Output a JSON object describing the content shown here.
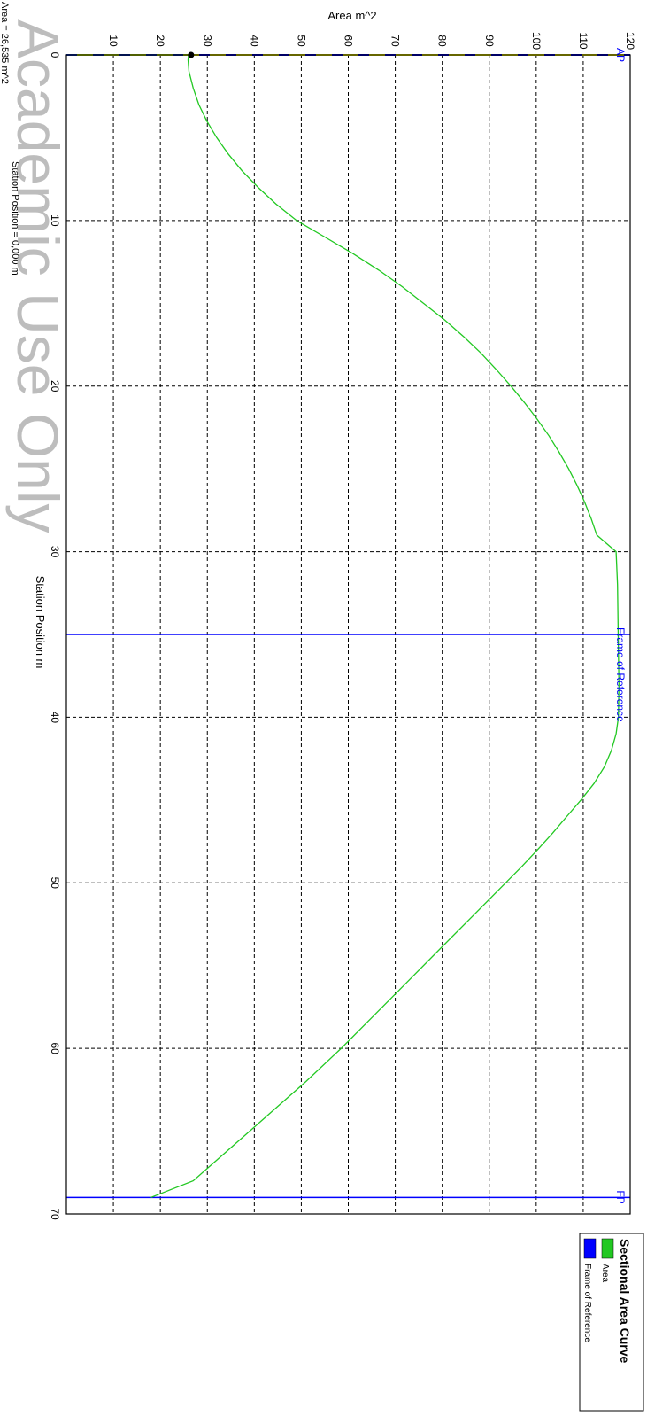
{
  "chart_data": {
    "type": "line",
    "title": "",
    "xlabel": "Station Position  m",
    "ylabel": "Area  m^2",
    "xlim": [
      0,
      70
    ],
    "ylim": [
      0,
      120
    ],
    "x_ticks": [
      "0",
      "10",
      "20",
      "30",
      "40",
      "50",
      "60",
      "70"
    ],
    "y_ticks": [
      "10",
      "20",
      "30",
      "40",
      "50",
      "60",
      "70",
      "80",
      "90",
      "100",
      "110",
      "120"
    ],
    "grid": true,
    "rotation": "chart rotated 90 degrees clockwise",
    "series": [
      {
        "name": "Area",
        "color": "#22c822",
        "x": [
          0,
          0,
          0.3,
          1,
          2,
          3,
          4,
          5,
          6,
          7,
          8,
          9,
          10,
          11,
          12,
          13,
          14,
          15,
          16,
          17,
          18,
          19,
          20,
          21,
          22,
          23,
          24,
          25,
          26,
          27,
          28,
          29,
          30,
          32,
          34,
          36,
          38,
          40,
          41,
          42,
          43,
          44,
          45,
          46,
          47,
          48,
          49,
          50,
          52,
          54,
          56,
          58,
          60,
          62,
          64,
          66,
          67,
          68,
          69
        ],
        "y": [
          0,
          26,
          25.9,
          26.1,
          27,
          28.2,
          29.9,
          32,
          34.5,
          37.4,
          40.8,
          44.6,
          49,
          55,
          61,
          66.5,
          71.5,
          76,
          80.5,
          84.5,
          88.2,
          91.5,
          94.6,
          97.5,
          100.2,
          102.7,
          104.9,
          106.9,
          108.7,
          110.3,
          111.7,
          112.9,
          117,
          117.3,
          117.4,
          117.5,
          117.6,
          117.5,
          117,
          116,
          114.5,
          112.3,
          109.5,
          106.5,
          103.5,
          100.3,
          97,
          93.5,
          86.5,
          79.5,
          72.5,
          65.5,
          58.5,
          51,
          43,
          35,
          31,
          27,
          18
        ]
      }
    ],
    "reference_lines": [
      {
        "label": "AP",
        "x": 0,
        "color": "#ffff00"
      },
      {
        "label": "Frame of Reference",
        "x": 35,
        "color": "#0000ff"
      },
      {
        "label": "FP",
        "x": 69,
        "color": "#0000ff"
      }
    ],
    "selected_point": {
      "x": 0,
      "y": 26.535
    },
    "readouts": {
      "area": "Area =  26,535 m^2",
      "station": "Station Position =  0,000 m"
    },
    "legend": {
      "title": "Sectional Area Curve",
      "position": "bottom-right",
      "items": [
        {
          "label": "Area",
          "color": "#22c822"
        },
        {
          "label": "Frame of Reference",
          "color": "#0000ff"
        }
      ]
    },
    "watermark": "Academic Use Only",
    "colors": {
      "grid": "#000000",
      "marker_label": "#0000ff",
      "ap_dash": "#0000ff"
    }
  }
}
